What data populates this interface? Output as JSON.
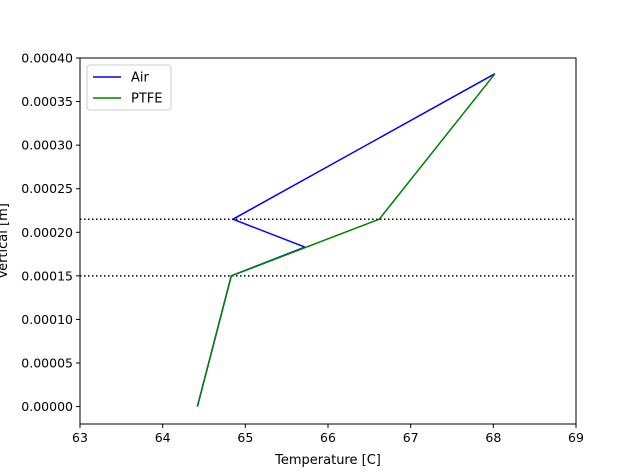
{
  "chart_data": {
    "type": "line",
    "xlabel": "Temperature [C]",
    "ylabel": "Vertical [m]",
    "xlim": [
      63,
      69
    ],
    "ylim": [
      -2e-05,
      0.0004
    ],
    "xticks": [
      "63",
      "64",
      "65",
      "66",
      "67",
      "68",
      "69"
    ],
    "yticks": [
      "0.00000",
      "0.00005",
      "0.00010",
      "0.00015",
      "0.00020",
      "0.00025",
      "0.00030",
      "0.00035",
      "0.00040"
    ],
    "legend_position": "upper-left",
    "grid": false,
    "series": [
      {
        "name": "Air",
        "color": "#0000ff",
        "x": [
          64.42,
          64.83,
          65.72,
          64.85,
          68.02
        ],
        "y": [
          0.0,
          0.00015,
          0.000183,
          0.000215,
          0.000382
        ]
      },
      {
        "name": "PTFE",
        "color": "#008000",
        "x": [
          64.42,
          64.83,
          66.62,
          68.02
        ],
        "y": [
          0.0,
          0.00015,
          0.000215,
          0.000382
        ]
      }
    ],
    "hlines": [
      {
        "y": 0.00015,
        "style": "dotted",
        "color": "#000000"
      },
      {
        "y": 0.000215,
        "style": "dotted",
        "color": "#000000"
      }
    ]
  }
}
